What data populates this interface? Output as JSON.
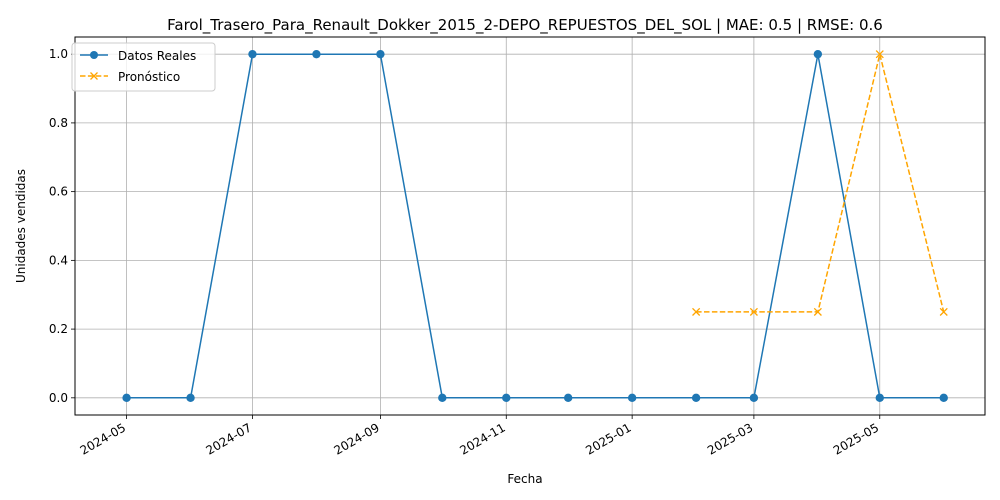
{
  "chart_data": {
    "type": "line",
    "title": "Farol_Trasero_Para_Renault_Dokker_2015_2-DEPO_REPUESTOS_DEL_SOL | MAE: 0.5 | RMSE: 0.6",
    "xlabel": "Fecha",
    "ylabel": "Unidades vendidas",
    "x_ticks": [
      "2024-05",
      "2024-07",
      "2024-09",
      "2024-11",
      "2025-01",
      "2025-03",
      "2025-05"
    ],
    "x_range": [
      "2024-04-06",
      "2025-06-21"
    ],
    "y_ticks": [
      "0.0",
      "0.2",
      "0.4",
      "0.6",
      "0.8",
      "1.0"
    ],
    "ylim": [
      -0.05,
      1.05
    ],
    "grid": true,
    "legend_position": "upper-left",
    "series": [
      {
        "name": "Datos Reales",
        "color": "#1f77b4",
        "line_style": "solid",
        "marker": "circle",
        "x": [
          "2024-05-01",
          "2024-06-01",
          "2024-07-01",
          "2024-08-01",
          "2024-09-01",
          "2024-10-01",
          "2024-11-01",
          "2024-12-01",
          "2025-01-01",
          "2025-02-01",
          "2025-03-01",
          "2025-04-01",
          "2025-05-01",
          "2025-06-01"
        ],
        "y": [
          0,
          0,
          1,
          1,
          1,
          0,
          0,
          0,
          0,
          0,
          0,
          1,
          0,
          0
        ]
      },
      {
        "name": "Pronóstico",
        "color": "#ffa500",
        "line_style": "dashed",
        "marker": "x",
        "x": [
          "2025-02-01",
          "2025-03-01",
          "2025-04-01",
          "2025-05-01",
          "2025-06-01"
        ],
        "y": [
          0.25,
          0.25,
          0.25,
          1,
          0.25
        ]
      }
    ]
  }
}
